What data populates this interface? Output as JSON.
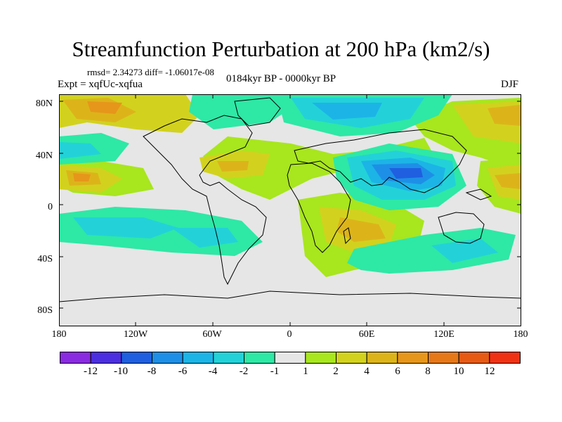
{
  "title": "Streamfunction Perturbation at 200 hPa (km2/s)",
  "stats": "rmsd= 2.34273  diff= -1.06017e-08",
  "experiment": "Expt = xqfUc-xqfua",
  "period": "0184kyr BP - 0000kyr BP",
  "season": "DJF",
  "lat_labels": [
    "80N",
    "40N",
    "0",
    "40S",
    "80S"
  ],
  "lon_labels": [
    "180",
    "120W",
    "60W",
    "0",
    "60E",
    "120E",
    "180"
  ],
  "colorbar": {
    "levels": [
      "-12",
      "-10",
      "-8",
      "-6",
      "-4",
      "-2",
      "-1",
      "1",
      "2",
      "4",
      "6",
      "8",
      "10",
      "12"
    ],
    "colors": [
      "#8a2be2",
      "#4b2fe0",
      "#1f5fe0",
      "#1e8fe6",
      "#1cb4e6",
      "#22d2d8",
      "#2ee8a6",
      "#e6e6e6",
      "#a8e61e",
      "#d2d21e",
      "#dcb41a",
      "#e6961a",
      "#e67818",
      "#e65a14",
      "#f03214"
    ]
  }
}
